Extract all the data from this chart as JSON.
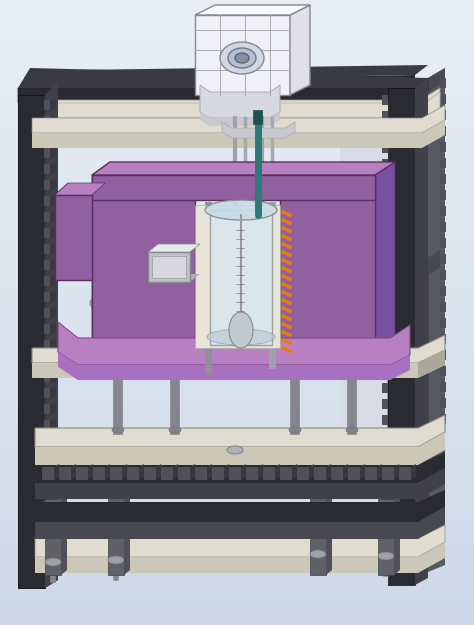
{
  "bg_top": "#cdd8e8",
  "bg_bot": "#e8eef4",
  "frame_dark": "#2a2a32",
  "frame_mid": "#404048",
  "frame_light": "#585860",
  "platform_face": "#d0cabb",
  "platform_top": "#ddd8c8",
  "platform_side": "#b8b2a2",
  "purple_front": "#9060a0",
  "purple_top": "#b880c0",
  "purple_left": "#a870b0",
  "purple_light_front": "#c090d0",
  "silver_dark": "#808090",
  "silver_mid": "#a0a0b0",
  "silver_light": "#c0c0d0",
  "white_part": "#e8e8f0",
  "teal": "#307878",
  "orange": "#e87818",
  "beige_top": "#e0ddd0",
  "beige_mid": "#ccc8b8",
  "chain_color": "#505058",
  "fig_width": 4.74,
  "fig_height": 6.25,
  "dpi": 100
}
